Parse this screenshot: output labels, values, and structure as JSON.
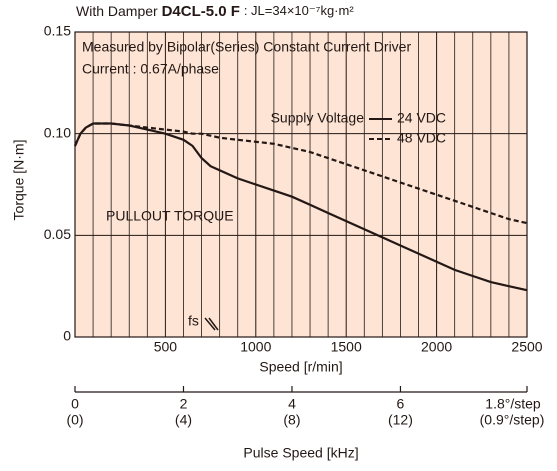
{
  "chart_data": {
    "type": "line",
    "title_prefix": "With Damper",
    "title_model": "D4CL-5.0 F",
    "title_inertia": ": JL=34×10⁻⁷kg·m²",
    "annotations": [
      "Measured by Bipolar(Series) Constant Current Driver",
      "Current : 0.67A/phase",
      "PULLOUT TORQUE",
      "fs"
    ],
    "legend_title": "Supply Voltage",
    "xlabel": "Speed [r/min]",
    "ylabel": "Torque [N·m]",
    "x": [
      0,
      30,
      60,
      100,
      150,
      200,
      300,
      400,
      500,
      600,
      650,
      700,
      750,
      800,
      900,
      1000,
      1100,
      1200,
      1300,
      1400,
      1500,
      1600,
      1700,
      1800,
      1900,
      2000,
      2100,
      2200,
      2300,
      2400,
      2500
    ],
    "series": [
      {
        "name": "24 VDC",
        "color": "#231815",
        "dash": false,
        "values": [
          0.094,
          0.1,
          0.103,
          0.105,
          0.105,
          0.105,
          0.104,
          0.102,
          0.1,
          0.097,
          0.094,
          0.088,
          0.084,
          0.082,
          0.078,
          0.075,
          0.072,
          0.069,
          0.065,
          0.061,
          0.057,
          0.053,
          0.049,
          0.045,
          0.041,
          0.037,
          0.033,
          0.03,
          0.027,
          0.025,
          0.023
        ]
      },
      {
        "name": "48 VDC",
        "color": "#231815",
        "dash": true,
        "values": [
          0.094,
          0.1,
          0.103,
          0.105,
          0.105,
          0.105,
          0.104,
          0.103,
          0.102,
          0.101,
          0.1,
          0.1,
          0.099,
          0.098,
          0.097,
          0.096,
          0.095,
          0.093,
          0.091,
          0.088,
          0.085,
          0.082,
          0.079,
          0.076,
          0.073,
          0.07,
          0.067,
          0.064,
          0.061,
          0.058,
          0.056
        ]
      }
    ],
    "xlim": [
      0,
      2500
    ],
    "xticks": [
      500,
      1000,
      1500,
      2000,
      2500
    ],
    "x_minor_ticks": [
      100,
      200,
      300,
      400,
      600,
      700,
      800,
      900,
      1100,
      1200,
      1300,
      1400,
      1600,
      1700,
      1800,
      1900,
      2100,
      2200,
      2300,
      2400
    ],
    "ylim": [
      0,
      0.15
    ],
    "yticks": [
      0,
      0.05,
      {
        "value": 0.1,
        "label": "0.10"
      },
      0.15
    ],
    "x2label": "Pulse Speed [kHz]",
    "x2lim": [
      0,
      8.333
    ],
    "x2ticks": [
      0,
      2,
      4,
      6
    ],
    "x2_sublabels": [
      "(0)",
      "(4)",
      "(8)",
      "(12)"
    ],
    "x2_step_labels": [
      "1.8°/step",
      "(0.9°/step)"
    ],
    "background": "#fde4d4",
    "grid": true
  }
}
